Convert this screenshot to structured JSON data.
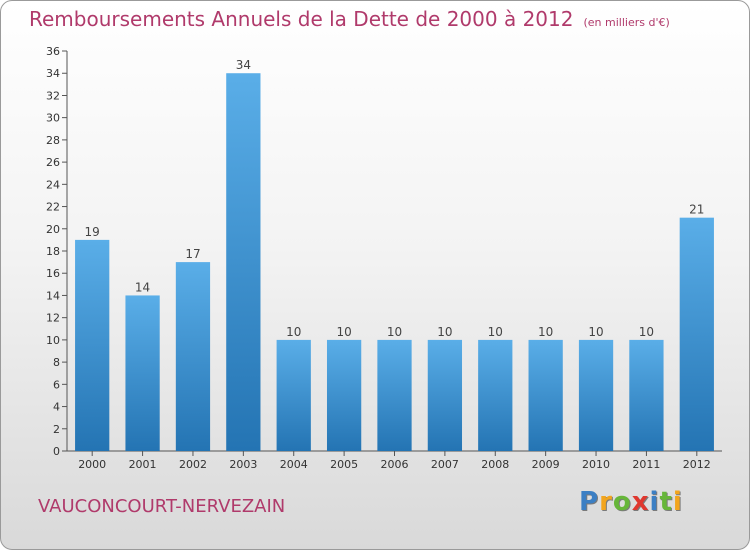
{
  "chart_title": "Remboursements Annuels de la Dette de 2000 à 2012",
  "chart_unit": "(en milliers d'€)",
  "commune_name": "VAUCONCOURT-NERVEZAIN",
  "logo": {
    "letters": [
      "P",
      "r",
      "o",
      "x",
      "i",
      "t",
      "i"
    ],
    "colors": [
      "#3b7fc4",
      "#f2a51e",
      "#67b63a",
      "#e0382f",
      "#3b7fc4",
      "#67b63a",
      "#f2a51e"
    ]
  },
  "colors": {
    "bar_top": "#5aaee8",
    "bar_bottom": "#2474b3",
    "title": "#b03a6b"
  },
  "chart_data": {
    "type": "bar",
    "categories": [
      "2000",
      "2001",
      "2002",
      "2003",
      "2004",
      "2005",
      "2006",
      "2007",
      "2008",
      "2009",
      "2010",
      "2011",
      "2012"
    ],
    "values": [
      19,
      14,
      17,
      34,
      10,
      10,
      10,
      10,
      10,
      10,
      10,
      10,
      21
    ],
    "data_labels": [
      "19",
      "14",
      "17",
      "34",
      "10",
      "10",
      "10",
      "10",
      "10",
      "10",
      "10",
      "10",
      "21"
    ],
    "ylim": [
      0,
      36
    ],
    "yticks": [
      0,
      2,
      4,
      6,
      8,
      10,
      12,
      14,
      16,
      18,
      20,
      22,
      24,
      26,
      28,
      30,
      32,
      34,
      36
    ],
    "grid": false,
    "legend": "none"
  }
}
